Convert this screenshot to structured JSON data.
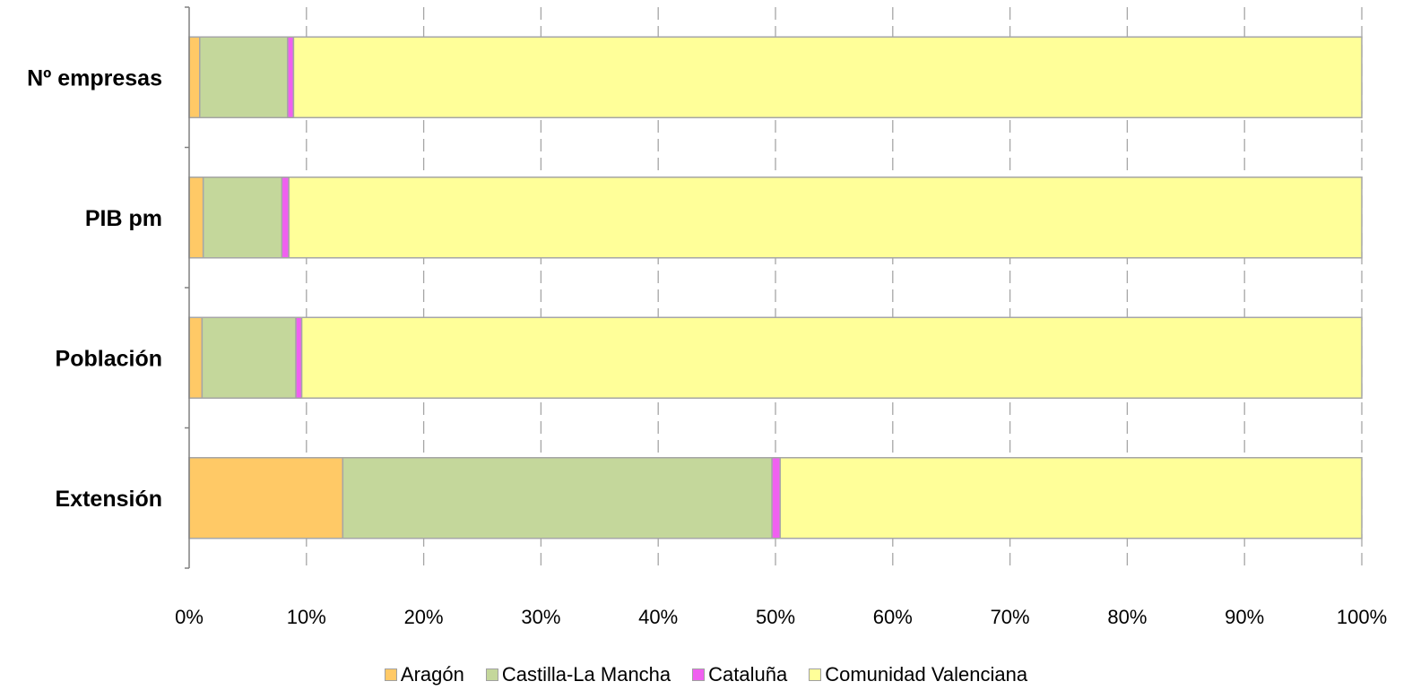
{
  "chart_data": {
    "type": "bar",
    "orientation": "horizontal",
    "stacked": "percent",
    "categories": [
      "Nº empresas",
      "PIB pm",
      "Población",
      "Extensión"
    ],
    "series": [
      {
        "name": "Aragón",
        "color": "#FFC966",
        "values": [
          0.9,
          1.2,
          1.1,
          13.1
        ]
      },
      {
        "name": "Castilla-La Mancha",
        "color": "#C4D79B",
        "values": [
          7.5,
          6.7,
          8.0,
          36.6
        ]
      },
      {
        "name": "Cataluña",
        "color": "#F060F0",
        "values": [
          0.5,
          0.6,
          0.5,
          0.7
        ]
      },
      {
        "name": "Comunidad Valenciana",
        "color": "#FFFF99",
        "values": [
          91.1,
          91.5,
          90.4,
          49.6
        ]
      }
    ],
    "x_ticks": [
      "0%",
      "10%",
      "20%",
      "30%",
      "40%",
      "50%",
      "60%",
      "70%",
      "80%",
      "90%",
      "100%"
    ],
    "xlim": [
      0,
      100
    ],
    "grid": "vertical dashed",
    "legend_position": "bottom"
  }
}
